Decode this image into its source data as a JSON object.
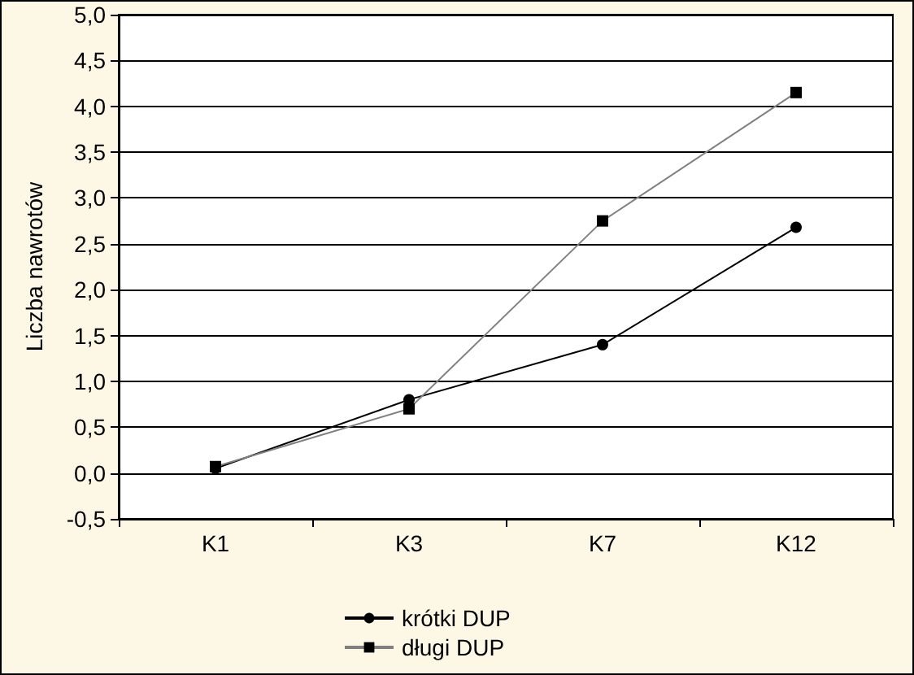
{
  "chart_data": {
    "type": "line",
    "ylabel": "Liczba nawrotów",
    "categories": [
      "K1",
      "K3",
      "K7",
      "K12"
    ],
    "series": [
      {
        "name": "krótki DUP",
        "color": "#000000",
        "marker": "circle",
        "values": [
          0.05,
          0.8,
          1.4,
          2.68
        ]
      },
      {
        "name": "długi DUP",
        "color": "#808080",
        "marker": "square",
        "values": [
          0.07,
          0.7,
          2.75,
          4.15
        ]
      }
    ],
    "ylim": [
      -0.5,
      5
    ],
    "yticks": [
      {
        "value": -0.5,
        "label": "-0,5"
      },
      {
        "value": 0,
        "label": "0,0"
      },
      {
        "value": 0.5,
        "label": "0,5"
      },
      {
        "value": 1,
        "label": "1,0"
      },
      {
        "value": 1.5,
        "label": "1,5"
      },
      {
        "value": 2,
        "label": "2,0"
      },
      {
        "value": 2.5,
        "label": "2,5"
      },
      {
        "value": 3,
        "label": "3,0"
      },
      {
        "value": 3.5,
        "label": "3,5"
      },
      {
        "value": 4,
        "label": "4,0"
      },
      {
        "value": 4.5,
        "label": "4,5"
      },
      {
        "value": 5,
        "label": "5,0"
      }
    ],
    "grid": "y",
    "legend": "bottom"
  }
}
